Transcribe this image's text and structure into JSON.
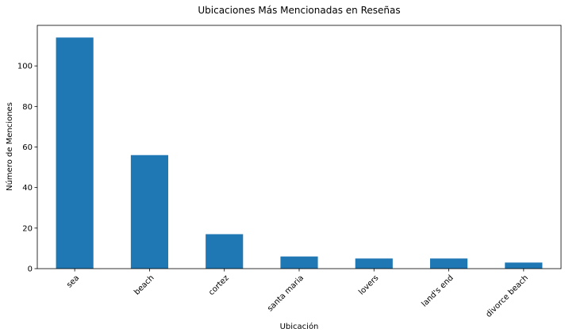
{
  "chart_data": {
    "type": "bar",
    "title": "Ubicaciones Más Mencionadas en Reseñas",
    "xlabel": "Ubicación",
    "ylabel": "Número de Menciones",
    "categories": [
      "sea",
      "beach",
      "cortez",
      "santa maria",
      "lovers",
      "land's end",
      "divorce beach"
    ],
    "values": [
      114,
      56,
      17,
      6,
      5,
      5,
      3
    ],
    "ylim": [
      0,
      120
    ],
    "yticks": [
      "0",
      "20",
      "40",
      "60",
      "80",
      "100"
    ],
    "ytick_values": [
      0,
      20,
      40,
      60,
      80,
      100
    ],
    "grid": false,
    "bar_color": "#1f77b4"
  }
}
